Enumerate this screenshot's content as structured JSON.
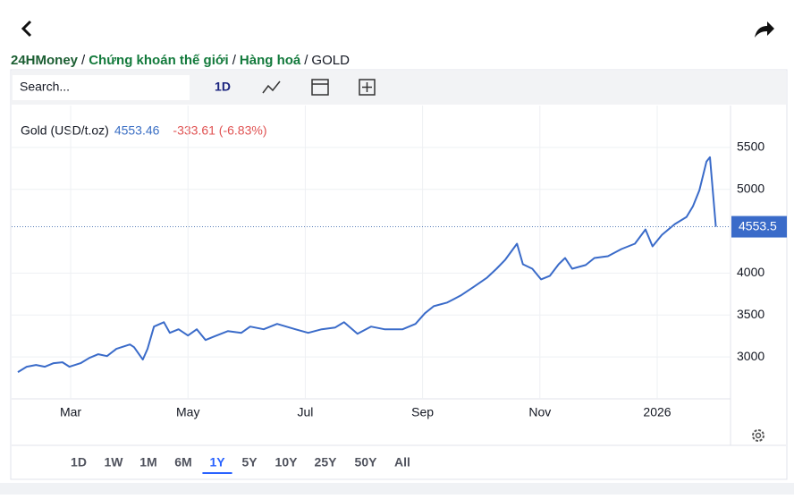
{
  "breadcrumb": {
    "items": [
      "24HMoney",
      "Chứng khoán thế giới",
      "Hàng hoá",
      "GOLD"
    ],
    "separator": "/"
  },
  "toolbar": {
    "search_placeholder": "Search...",
    "interval": "1D"
  },
  "legend": {
    "name": "Gold (USD/t.oz)",
    "price": "4553.46",
    "change": "-333.61 (-6.83%)"
  },
  "ranges": {
    "buttons": [
      "1D",
      "1W",
      "1M",
      "6M",
      "1Y",
      "5Y",
      "10Y",
      "25Y",
      "50Y",
      "All"
    ],
    "selected_index": 4
  },
  "chart_data": {
    "type": "line",
    "color": "#3a6bc9",
    "x": [
      2.1,
      2.25,
      2.41,
      2.56,
      2.71,
      2.86,
      2.98,
      3.17,
      3.32,
      3.47,
      3.62,
      3.78,
      4.01,
      4.08,
      4.23,
      4.31,
      4.42,
      4.59,
      4.69,
      4.84,
      5.0,
      5.15,
      5.3,
      5.45,
      5.68,
      5.91,
      6.06,
      6.29,
      6.52,
      6.83,
      7.05,
      7.28,
      7.51,
      7.66,
      7.89,
      8.12,
      8.35,
      8.66,
      8.88,
      9.04,
      9.19,
      9.42,
      9.65,
      9.88,
      10.1,
      10.26,
      10.41,
      10.61,
      10.71,
      10.87,
      11.02,
      11.17,
      11.32,
      11.43,
      11.55,
      11.78,
      11.93,
      12.16,
      12.39,
      12.62,
      12.8,
      12.92,
      13.08,
      13.3,
      13.5,
      13.61,
      13.72,
      13.84,
      13.9,
      14.0
    ],
    "values": [
      2819,
      2883,
      2904,
      2883,
      2926,
      2936,
      2883,
      2926,
      2989,
      3032,
      3010,
      3096,
      3149,
      3117,
      2968,
      3096,
      3362,
      3415,
      3287,
      3330,
      3255,
      3330,
      3202,
      3245,
      3308,
      3287,
      3362,
      3330,
      3394,
      3330,
      3287,
      3330,
      3351,
      3415,
      3277,
      3362,
      3330,
      3330,
      3394,
      3521,
      3606,
      3649,
      3734,
      3840,
      3947,
      4053,
      4160,
      4351,
      4106,
      4053,
      3926,
      3968,
      4106,
      4181,
      4053,
      4096,
      4181,
      4202,
      4287,
      4351,
      4521,
      4319,
      4457,
      4585,
      4670,
      4798,
      4989,
      5330,
      5383,
      4553.46
    ],
    "last_price_label": "4553.5",
    "xlim": [
      2.1,
      14.25
    ],
    "xticks": [
      {
        "value": 3,
        "label": "Mar"
      },
      {
        "value": 5,
        "label": "May"
      },
      {
        "value": 7,
        "label": "Jul"
      },
      {
        "value": 9,
        "label": "Sep"
      },
      {
        "value": 11,
        "label": "Nov"
      },
      {
        "value": 13,
        "label": "2026"
      }
    ],
    "ylim": [
      2500,
      6000
    ],
    "yticks": [
      3000,
      3500,
      4000,
      5000,
      5500
    ],
    "grid": true
  }
}
